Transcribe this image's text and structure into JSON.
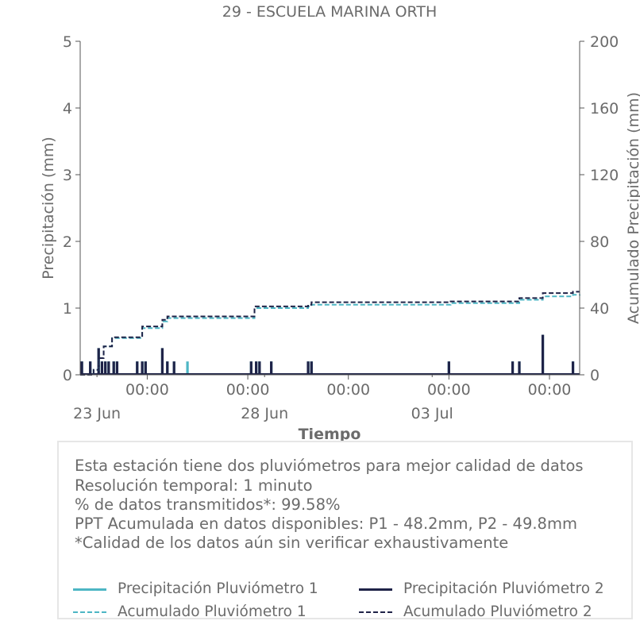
{
  "chart_data": {
    "type": "bar+line",
    "title": "29 - ESCUELA MARINA ORTH",
    "xlabel": "Tiempo",
    "ylabel_left": "Precipitación (mm)",
    "ylabel_right": "Acumulado Precipitación (mm)",
    "ylim_left": [
      0,
      5
    ],
    "ylim_right": [
      0,
      200
    ],
    "yticks_left": [
      "0",
      "1",
      "2",
      "3",
      "4",
      "5"
    ],
    "yticks_right": [
      "0",
      "40",
      "80",
      "120",
      "160",
      "200"
    ],
    "xlim_days": [
      -0.5,
      14.4
    ],
    "xticks": [
      {
        "day": 1.5,
        "label": "00:00"
      },
      {
        "day": 4.5,
        "label": "00:00"
      },
      {
        "day": 7.5,
        "label": "00:00"
      },
      {
        "day": 10.5,
        "label": "00:00"
      },
      {
        "day": 13.5,
        "label": "00:00"
      }
    ],
    "date_labels": [
      {
        "day": 0,
        "label": "23 Jun"
      },
      {
        "day": 5,
        "label": "28 Jun"
      },
      {
        "day": 10,
        "label": "03 Jul"
      }
    ],
    "series": [
      {
        "name": "Precipitación Pluviómetro 1",
        "kind": "bar",
        "color": "#4db6c4",
        "points": [
          [
            -0.45,
            0.2
          ],
          [
            -0.2,
            0.2
          ],
          [
            0.05,
            0.4
          ],
          [
            0.15,
            0.2
          ],
          [
            0.25,
            0.2
          ],
          [
            0.35,
            0.2
          ],
          [
            0.5,
            0.2
          ],
          [
            0.6,
            0.2
          ],
          [
            1.2,
            0.2
          ],
          [
            1.35,
            0.2
          ],
          [
            1.45,
            0.2
          ],
          [
            1.95,
            0.4
          ],
          [
            2.1,
            0.2
          ],
          [
            2.3,
            0.2
          ],
          [
            2.7,
            0.2
          ],
          [
            4.6,
            0.2
          ],
          [
            4.75,
            0.2
          ],
          [
            4.85,
            0.2
          ],
          [
            5.2,
            0.2
          ],
          [
            6.3,
            0.2
          ],
          [
            6.4,
            0.2
          ],
          [
            10.5,
            0.2
          ],
          [
            12.4,
            0.2
          ],
          [
            12.6,
            0.2
          ],
          [
            13.3,
            0.6
          ],
          [
            14.2,
            0.2
          ]
        ]
      },
      {
        "name": "Precipitación Pluviómetro 2",
        "kind": "bar",
        "color": "#1f2348",
        "points": [
          [
            -0.45,
            0.2
          ],
          [
            -0.2,
            0.2
          ],
          [
            0.05,
            0.4
          ],
          [
            0.15,
            0.2
          ],
          [
            0.25,
            0.2
          ],
          [
            0.35,
            0.2
          ],
          [
            0.5,
            0.2
          ],
          [
            0.6,
            0.2
          ],
          [
            1.2,
            0.2
          ],
          [
            1.35,
            0.2
          ],
          [
            1.45,
            0.2
          ],
          [
            1.95,
            0.4
          ],
          [
            2.1,
            0.2
          ],
          [
            2.3,
            0.2
          ],
          [
            4.6,
            0.2
          ],
          [
            4.75,
            0.2
          ],
          [
            4.85,
            0.2
          ],
          [
            5.2,
            0.2
          ],
          [
            6.3,
            0.2
          ],
          [
            6.4,
            0.2
          ],
          [
            10.5,
            0.2
          ],
          [
            12.4,
            0.2
          ],
          [
            12.6,
            0.2
          ],
          [
            13.3,
            0.6
          ],
          [
            14.2,
            0.2
          ]
        ]
      },
      {
        "name": "Acumulado Pluviómetro 1",
        "kind": "step",
        "color": "#4db6c4",
        "points": [
          [
            -0.5,
            0
          ],
          [
            -0.1,
            3
          ],
          [
            0.05,
            10
          ],
          [
            0.2,
            17
          ],
          [
            0.45,
            22
          ],
          [
            1.2,
            22
          ],
          [
            1.35,
            28
          ],
          [
            1.95,
            32
          ],
          [
            2.1,
            34
          ],
          [
            4.55,
            34
          ],
          [
            4.7,
            40
          ],
          [
            6.3,
            41
          ],
          [
            6.4,
            42
          ],
          [
            10.5,
            42
          ],
          [
            10.55,
            43
          ],
          [
            12.45,
            43
          ],
          [
            12.6,
            45
          ],
          [
            13.3,
            47
          ],
          [
            14.2,
            48
          ],
          [
            14.4,
            48.2
          ]
        ]
      },
      {
        "name": "Acumulado Pluviómetro 2",
        "kind": "step",
        "color": "#1f2348",
        "points": [
          [
            -0.5,
            0
          ],
          [
            -0.1,
            3
          ],
          [
            0.05,
            10
          ],
          [
            0.2,
            17
          ],
          [
            0.45,
            22.5
          ],
          [
            1.2,
            22.5
          ],
          [
            1.35,
            29
          ],
          [
            1.95,
            33
          ],
          [
            2.1,
            35
          ],
          [
            4.55,
            35
          ],
          [
            4.7,
            41
          ],
          [
            6.3,
            42
          ],
          [
            6.4,
            43.5
          ],
          [
            10.5,
            43.5
          ],
          [
            10.55,
            44
          ],
          [
            12.45,
            44
          ],
          [
            12.6,
            46
          ],
          [
            13.3,
            49
          ],
          [
            14.2,
            49.8
          ],
          [
            14.4,
            49.8
          ]
        ]
      }
    ]
  },
  "info": {
    "line1": "Esta estación tiene dos pluviómetros para mejor calidad de datos",
    "line2": "Resolución temporal: 1 minuto",
    "line3": "% de datos transmitidos*: 99.58%",
    "line4": "PPT Acumulada en datos disponibles: P1 - 48.2mm, P2 - 49.8mm",
    "line5": "*Calidad de los datos aún sin verificar exhaustivamente"
  },
  "legend": {
    "p1": "Precipitación Pluviómetro 1",
    "p2": "Precipitación Pluviómetro 2",
    "a1": "Acumulado Pluviómetro 1",
    "a2": "Acumulado Pluviómetro 2",
    "color1": "#4db6c4",
    "color2": "#1f2348"
  }
}
